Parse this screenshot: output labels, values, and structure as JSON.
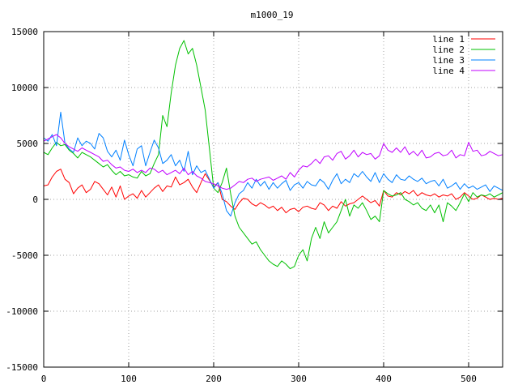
{
  "chart_data": {
    "type": "line",
    "title": "m1000_19",
    "xlabel": "",
    "ylabel": "",
    "xlim": [
      0,
      540
    ],
    "ylim": [
      -15000,
      15000
    ],
    "xticks": [
      0,
      100,
      200,
      300,
      400,
      500
    ],
    "yticks": [
      -15000,
      -10000,
      -5000,
      0,
      5000,
      10000,
      15000
    ],
    "grid": true,
    "legend_position": "top-right",
    "series": [
      {
        "name": "line 1",
        "color": "#ff0000",
        "x": [
          0,
          5,
          10,
          15,
          20,
          25,
          30,
          35,
          40,
          45,
          50,
          55,
          60,
          65,
          70,
          75,
          80,
          85,
          90,
          95,
          100,
          105,
          110,
          115,
          120,
          125,
          130,
          135,
          140,
          145,
          150,
          155,
          160,
          165,
          170,
          175,
          180,
          185,
          190,
          195,
          200,
          205,
          210,
          215,
          220,
          225,
          230,
          235,
          240,
          245,
          250,
          255,
          260,
          265,
          270,
          275,
          280,
          285,
          290,
          295,
          300,
          305,
          310,
          315,
          320,
          325,
          330,
          335,
          340,
          345,
          350,
          355,
          360,
          365,
          370,
          375,
          380,
          385,
          390,
          395,
          400,
          405,
          410,
          415,
          420,
          425,
          430,
          435,
          440,
          445,
          450,
          455,
          460,
          465,
          470,
          475,
          480,
          485,
          490,
          495,
          500,
          505,
          510,
          515,
          520,
          525,
          530,
          535,
          540
        ],
        "values": [
          1200,
          1300,
          2000,
          2500,
          2700,
          1800,
          1500,
          500,
          1000,
          1300,
          600,
          900,
          1600,
          1400,
          900,
          400,
          1100,
          200,
          1200,
          0,
          300,
          500,
          100,
          800,
          200,
          600,
          1000,
          1300,
          700,
          1200,
          1100,
          2000,
          1300,
          1500,
          1800,
          1100,
          600,
          1500,
          2300,
          1700,
          1100,
          1500,
          0,
          -200,
          -600,
          -900,
          -300,
          100,
          0,
          -400,
          -600,
          -300,
          -500,
          -800,
          -600,
          -1000,
          -700,
          -1200,
          -900,
          -800,
          -1100,
          -700,
          -600,
          -800,
          -900,
          -300,
          -500,
          -1000,
          -600,
          -800,
          -200,
          -600,
          -400,
          -300,
          0,
          300,
          0,
          -300,
          -100,
          -600,
          800,
          300,
          200,
          600,
          400,
          700,
          500,
          800,
          300,
          600,
          400,
          300,
          500,
          200,
          400,
          300,
          500,
          0,
          200,
          600,
          300,
          0,
          100,
          400,
          200,
          0,
          100,
          0,
          100
        ]
      },
      {
        "name": "line 2",
        "color": "#00c000",
        "x": [
          0,
          5,
          10,
          15,
          20,
          25,
          30,
          35,
          40,
          45,
          50,
          55,
          60,
          65,
          70,
          75,
          80,
          85,
          90,
          95,
          100,
          105,
          110,
          115,
          120,
          125,
          130,
          135,
          140,
          145,
          150,
          155,
          160,
          165,
          170,
          175,
          180,
          185,
          190,
          195,
          200,
          205,
          210,
          215,
          220,
          225,
          230,
          235,
          240,
          245,
          250,
          255,
          260,
          265,
          270,
          275,
          280,
          285,
          290,
          295,
          300,
          305,
          310,
          315,
          320,
          325,
          330,
          335,
          340,
          345,
          350,
          355,
          360,
          365,
          370,
          375,
          380,
          385,
          390,
          395,
          400,
          405,
          410,
          415,
          420,
          425,
          430,
          435,
          440,
          445,
          450,
          455,
          460,
          465,
          470,
          475,
          480,
          485,
          490,
          495,
          500,
          505,
          510,
          515,
          520,
          525,
          530,
          535,
          540
        ],
        "values": [
          4200,
          4000,
          4600,
          5100,
          4800,
          4900,
          4400,
          4100,
          3700,
          4200,
          4000,
          3800,
          3500,
          3200,
          2900,
          3100,
          2600,
          2200,
          2500,
          2100,
          2200,
          2000,
          1900,
          2500,
          2100,
          2300,
          3200,
          4000,
          7500,
          6500,
          9500,
          12000,
          13500,
          14200,
          13000,
          13500,
          12000,
          10000,
          8000,
          4500,
          1000,
          600,
          1500,
          2800,
          500,
          -1500,
          -2500,
          -3000,
          -3500,
          -4000,
          -3800,
          -4500,
          -5000,
          -5500,
          -5800,
          -6000,
          -5500,
          -5800,
          -6200,
          -6000,
          -5000,
          -4500,
          -5500,
          -3500,
          -2500,
          -3500,
          -2000,
          -3000,
          -2500,
          -2000,
          -1000,
          0,
          -1500,
          -500,
          -800,
          -300,
          -1000,
          -1800,
          -1500,
          -2000,
          800,
          500,
          300,
          400,
          600,
          0,
          -200,
          -500,
          -300,
          -800,
          -1000,
          -500,
          -1200,
          -500,
          -2000,
          -300,
          -600,
          -1000,
          -300,
          500,
          -200,
          600,
          200,
          400,
          300,
          500,
          200,
          400,
          600
        ]
      },
      {
        "name": "line 3",
        "color": "#0080ff",
        "x": [
          0,
          5,
          10,
          15,
          20,
          25,
          30,
          35,
          40,
          45,
          50,
          55,
          60,
          65,
          70,
          75,
          80,
          85,
          90,
          95,
          100,
          105,
          110,
          115,
          120,
          125,
          130,
          135,
          140,
          145,
          150,
          155,
          160,
          165,
          170,
          175,
          180,
          185,
          190,
          195,
          200,
          205,
          210,
          215,
          220,
          225,
          230,
          235,
          240,
          245,
          250,
          255,
          260,
          265,
          270,
          275,
          280,
          285,
          290,
          295,
          300,
          305,
          310,
          315,
          320,
          325,
          330,
          335,
          340,
          345,
          350,
          355,
          360,
          365,
          370,
          375,
          380,
          385,
          390,
          395,
          400,
          405,
          410,
          415,
          420,
          425,
          430,
          435,
          440,
          445,
          450,
          455,
          460,
          465,
          470,
          475,
          480,
          485,
          490,
          495,
          500,
          505,
          510,
          515,
          520,
          525,
          530,
          535,
          540
        ],
        "values": [
          5500,
          5200,
          5800,
          4800,
          7800,
          5000,
          4500,
          4200,
          5500,
          4800,
          5200,
          5000,
          4500,
          5900,
          5500,
          4300,
          3800,
          4400,
          3500,
          5300,
          4000,
          3000,
          4500,
          4800,
          3000,
          4200,
          5300,
          4600,
          3200,
          3500,
          4000,
          3000,
          3500,
          2500,
          4300,
          2200,
          3000,
          2400,
          2600,
          1800,
          1000,
          1500,
          500,
          -1000,
          -1500,
          -300,
          500,
          800,
          1500,
          1000,
          1800,
          1200,
          1600,
          900,
          1500,
          1000,
          1400,
          1700,
          800,
          1300,
          1500,
          1000,
          1600,
          1300,
          1200,
          1800,
          1500,
          900,
          1700,
          2300,
          1400,
          1800,
          1500,
          2300,
          2000,
          2500,
          2000,
          1600,
          2400,
          1500,
          2300,
          1800,
          1500,
          2200,
          1800,
          1700,
          2100,
          1800,
          1600,
          1900,
          1400,
          1600,
          1700,
          1200,
          1800,
          1000,
          1200,
          1500,
          900,
          1400,
          1000,
          1200,
          900,
          1100,
          1300,
          700,
          1200,
          1000,
          800
        ]
      },
      {
        "name": "line 4",
        "color": "#c000ff",
        "x": [
          0,
          5,
          10,
          15,
          20,
          25,
          30,
          35,
          40,
          45,
          50,
          55,
          60,
          65,
          70,
          75,
          80,
          85,
          90,
          95,
          100,
          105,
          110,
          115,
          120,
          125,
          130,
          135,
          140,
          145,
          150,
          155,
          160,
          165,
          170,
          175,
          180,
          185,
          190,
          195,
          200,
          205,
          210,
          215,
          220,
          225,
          230,
          235,
          240,
          245,
          250,
          255,
          260,
          265,
          270,
          275,
          280,
          285,
          290,
          295,
          300,
          305,
          310,
          315,
          320,
          325,
          330,
          335,
          340,
          345,
          350,
          355,
          360,
          365,
          370,
          375,
          380,
          385,
          390,
          395,
          400,
          405,
          410,
          415,
          420,
          425,
          430,
          435,
          440,
          445,
          450,
          455,
          460,
          465,
          470,
          475,
          480,
          485,
          490,
          495,
          500,
          505,
          510,
          515,
          520,
          525,
          530,
          535,
          540
        ],
        "values": [
          5200,
          5400,
          5600,
          5800,
          5500,
          5000,
          4700,
          4500,
          4300,
          4600,
          4400,
          4200,
          4000,
          3800,
          3400,
          3500,
          3100,
          2800,
          2900,
          2600,
          2500,
          2700,
          2400,
          2600,
          2400,
          2800,
          2700,
          2400,
          2600,
          2200,
          2400,
          2600,
          2300,
          2800,
          2200,
          2500,
          2100,
          1900,
          1600,
          1500,
          1400,
          1200,
          1000,
          900,
          1000,
          1300,
          1600,
          1500,
          1800,
          1900,
          1600,
          1800,
          1900,
          2000,
          1700,
          1900,
          2100,
          1800,
          2400,
          2000,
          2600,
          3000,
          2900,
          3200,
          3600,
          3200,
          3800,
          3900,
          3500,
          4100,
          4300,
          3600,
          3900,
          4400,
          3800,
          4200,
          4000,
          4100,
          3600,
          3900,
          5000,
          4400,
          4200,
          4600,
          4200,
          4700,
          4000,
          4300,
          3900,
          4400,
          3700,
          3800,
          4100,
          4200,
          3900,
          4000,
          4400,
          3700,
          4000,
          3900,
          5100,
          4300,
          4400,
          3900,
          4000,
          4300,
          4100,
          3900,
          4000
        ]
      }
    ]
  }
}
